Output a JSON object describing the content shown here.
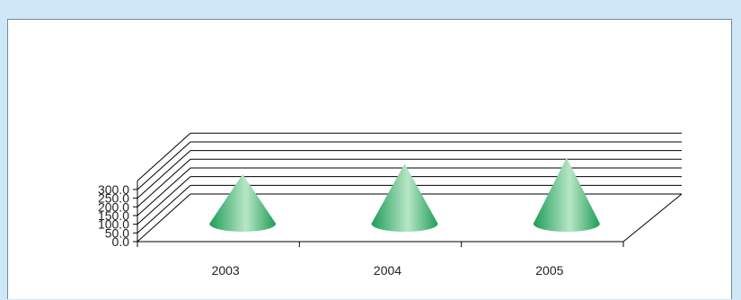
{
  "chart_data": {
    "type": "bar",
    "bar_shape": "3d-cone",
    "categories": [
      "2003",
      "2004",
      "2005"
    ],
    "values": [
      215,
      275,
      310
    ],
    "y_ticks": [
      "0.0",
      "50.0",
      "100.0",
      "150.0",
      "200.0",
      "250.0",
      "300.0"
    ],
    "ylim": [
      0,
      300
    ],
    "grid": true,
    "legend": "none",
    "colors": {
      "cone_dark": "#1f9e58",
      "cone_light": "#b8e6c6",
      "grid_line": "#000000",
      "background": "#cfe8f7"
    }
  }
}
